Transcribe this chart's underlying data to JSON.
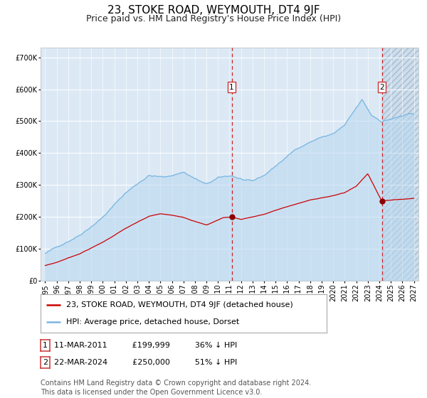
{
  "title": "23, STOKE ROAD, WEYMOUTH, DT4 9JF",
  "subtitle": "Price paid vs. HM Land Registry's House Price Index (HPI)",
  "ylim": [
    0,
    730000
  ],
  "yticks": [
    0,
    100000,
    200000,
    300000,
    400000,
    500000,
    600000,
    700000
  ],
  "ytick_labels": [
    "£0",
    "£100K",
    "£200K",
    "£300K",
    "£400K",
    "£500K",
    "£600K",
    "£700K"
  ],
  "background_color": "#ffffff",
  "plot_bg_color": "#dce9f5",
  "grid_color": "#ffffff",
  "hpi_color": "#7ab6e0",
  "hpi_fill_color": "#b8d8f0",
  "price_color": "#cc0000",
  "marker_color": "#8b0000",
  "vline_color": "#cc0000",
  "event1_year": 2011.19,
  "event2_year": 2024.22,
  "event1_price": 199999,
  "event2_price": 250000,
  "legend_line1": "23, STOKE ROAD, WEYMOUTH, DT4 9JF (detached house)",
  "legend_line2": "HPI: Average price, detached house, Dorset",
  "note1_date": "11-MAR-2011",
  "note1_price": "£199,999",
  "note1_info": "36% ↓ HPI",
  "note2_date": "22-MAR-2024",
  "note2_price": "£250,000",
  "note2_info": "51% ↓ HPI",
  "footer": "Contains HM Land Registry data © Crown copyright and database right 2024.\nThis data is licensed under the Open Government Licence v3.0.",
  "title_fontsize": 11,
  "subtitle_fontsize": 9,
  "tick_fontsize": 7,
  "legend_fontsize": 8,
  "note_fontsize": 8,
  "footer_fontsize": 7,
  "x_min": 1994.6,
  "x_max": 2027.4
}
